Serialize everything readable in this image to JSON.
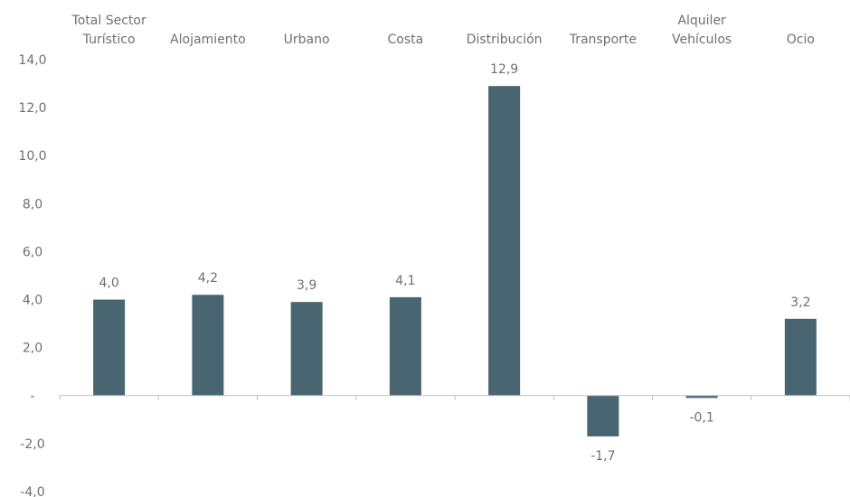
{
  "chart_data": {
    "type": "bar",
    "categories": [
      [
        "Total Sector",
        "Turístico"
      ],
      [
        "Alojamiento"
      ],
      [
        "Urbano"
      ],
      [
        "Costa"
      ],
      [
        "Distribución"
      ],
      [
        "Transporte"
      ],
      [
        "Alquiler",
        "Vehículos"
      ],
      [
        "Ocio"
      ]
    ],
    "values": [
      4.0,
      4.2,
      3.9,
      4.1,
      12.9,
      -1.7,
      -0.1,
      3.2
    ],
    "data_labels": [
      "4,0",
      "4,2",
      "3,9",
      "4,1",
      "12,9",
      "-1,7",
      "-0,1",
      "3,2"
    ],
    "ylim": [
      -4,
      14
    ],
    "y_ticks": [
      14,
      12,
      10,
      8,
      6,
      4,
      2,
      0,
      -2,
      -4
    ],
    "y_tick_labels": [
      "14,0",
      "12,0",
      "10,0",
      "8,0",
      "6,0",
      "4,0",
      "2,0",
      "-",
      "-2,0",
      "-4,0"
    ],
    "title": "",
    "xlabel": "",
    "ylabel": "",
    "grid": false,
    "legend": "none",
    "category_labels_position": "top",
    "colors": {
      "bar": "#4a6572",
      "axis": "#bfbfbf",
      "text": "#707070"
    }
  }
}
